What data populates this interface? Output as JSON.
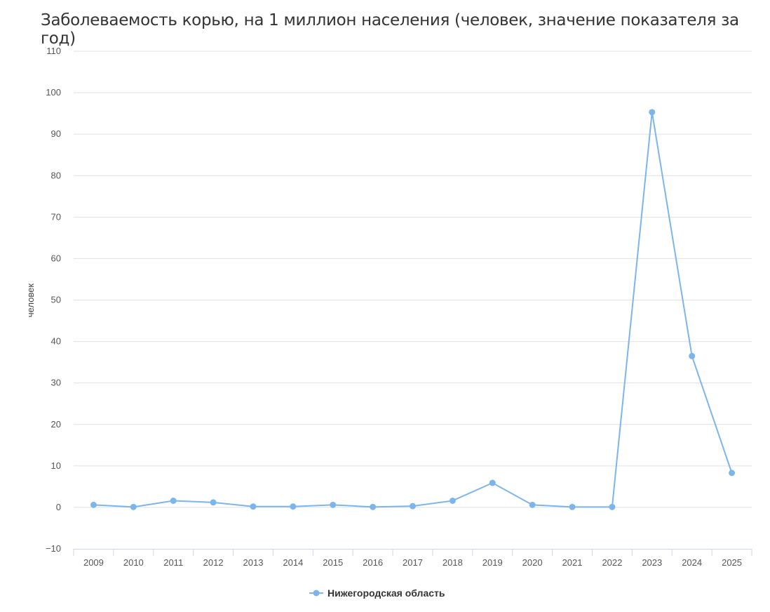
{
  "chart_data": {
    "type": "line",
    "title": "Заболеваемость корью, на 1 миллион населения (человек, значение показателя за год)",
    "xlabel": "",
    "ylabel": "человек",
    "categories": [
      "2009",
      "2010",
      "2011",
      "2012",
      "2013",
      "2014",
      "2015",
      "2016",
      "2017",
      "2018",
      "2019",
      "2020",
      "2021",
      "2022",
      "2023",
      "2024",
      "2025"
    ],
    "series": [
      {
        "name": "Нижегородская область",
        "color": "#7cb5ec",
        "values": [
          0.6,
          0.1,
          1.6,
          1.2,
          0.2,
          0.2,
          0.6,
          0.1,
          0.3,
          1.6,
          5.9,
          0.6,
          0.1,
          0.1,
          95.3,
          36.5,
          8.3
        ]
      }
    ],
    "ylim": [
      -10,
      110
    ],
    "yticks": [
      -10,
      0,
      10,
      20,
      30,
      40,
      50,
      60,
      70,
      80,
      90,
      100,
      110
    ],
    "grid": true,
    "legend": "bottom-center"
  }
}
